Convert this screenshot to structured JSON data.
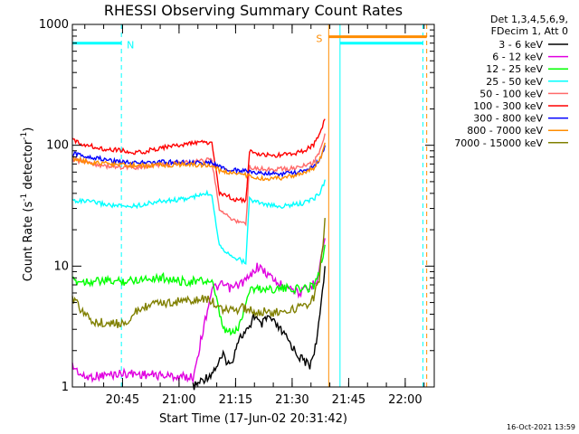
{
  "chart_data": {
    "type": "line",
    "title": "RHESSI Observing Summary Count Rates",
    "xlabel": "Start Time (17-Jun-02 20:31:42)",
    "ylabel_main": "Count Rate (s",
    "ylabel_sup1": "-1",
    "ylabel_mid": " detector",
    "ylabel_sup2": "-1",
    "ylabel_end": ")",
    "y_scale": "log",
    "ylim": [
      1,
      1000
    ],
    "xlim_minutes": [
      0,
      96
    ],
    "x_ticks": [
      {
        "label": "20:45",
        "min": 13.3
      },
      {
        "label": "21:00",
        "min": 28.3
      },
      {
        "label": "21:15",
        "min": 43.3
      },
      {
        "label": "21:30",
        "min": 58.3
      },
      {
        "label": "21:45",
        "min": 73.3
      },
      {
        "label": "22:00",
        "min": 88.3
      }
    ],
    "y_ticks": [
      {
        "label": "1",
        "value": 1
      },
      {
        "label": "10",
        "value": 10
      },
      {
        "label": "100",
        "value": 100
      },
      {
        "label": "1000",
        "value": 1000
      }
    ],
    "legend_header": [
      "Det 1,3,4,5,6,9,",
      "FDecim 1, Att 0"
    ],
    "legend_placement": "right",
    "series": [
      {
        "name": "3 - 6 keV",
        "color": "#000000",
        "points": [
          [
            32,
            1
          ],
          [
            37,
            1.3
          ],
          [
            40,
            1.8
          ],
          [
            42,
            1.5
          ],
          [
            44,
            2.5
          ],
          [
            47,
            3
          ],
          [
            48,
            4
          ],
          [
            50,
            3.2
          ],
          [
            52,
            3.8
          ],
          [
            55,
            3
          ],
          [
            57,
            2.5
          ],
          [
            60,
            1.8
          ],
          [
            63,
            1.5
          ],
          [
            65,
            2.5
          ],
          [
            66,
            5
          ],
          [
            67,
            10
          ]
        ]
      },
      {
        "name": "6 - 12 keV",
        "color": "#e000e0",
        "points": [
          [
            0,
            1.5
          ],
          [
            3,
            1.2
          ],
          [
            14,
            1.3
          ],
          [
            32,
            1.2
          ],
          [
            37,
            6.5
          ],
          [
            40,
            7
          ],
          [
            42,
            6.5
          ],
          [
            44,
            7
          ],
          [
            47,
            8
          ],
          [
            49,
            10
          ],
          [
            51,
            9
          ],
          [
            53,
            8
          ],
          [
            55,
            7
          ],
          [
            57,
            7
          ],
          [
            60,
            6
          ],
          [
            63,
            6.5
          ],
          [
            65,
            8
          ],
          [
            66,
            12
          ],
          [
            67,
            17
          ]
        ]
      },
      {
        "name": "12 - 25 keV",
        "color": "#00ff00",
        "points": [
          [
            0,
            7.5
          ],
          [
            5,
            7.5
          ],
          [
            10,
            7.5
          ],
          [
            14,
            7.5
          ],
          [
            20,
            8
          ],
          [
            25,
            8
          ],
          [
            28,
            7.5
          ],
          [
            33,
            7.5
          ],
          [
            37,
            7.5
          ],
          [
            40,
            3
          ],
          [
            42,
            2.8
          ],
          [
            44,
            3
          ],
          [
            47,
            6.5
          ],
          [
            50,
            6.5
          ],
          [
            53,
            6.5
          ],
          [
            56,
            6.5
          ],
          [
            59,
            6.5
          ],
          [
            62,
            6.5
          ],
          [
            64,
            7
          ],
          [
            65.5,
            9
          ],
          [
            66.5,
            12
          ],
          [
            67,
            15
          ]
        ]
      },
      {
        "name": "25 - 50 keV",
        "color": "#00ffff",
        "points": [
          [
            0,
            35
          ],
          [
            5,
            34
          ],
          [
            10,
            32
          ],
          [
            14,
            31
          ],
          [
            18,
            32
          ],
          [
            22,
            34
          ],
          [
            26,
            35
          ],
          [
            30,
            36
          ],
          [
            33,
            38
          ],
          [
            36,
            40
          ],
          [
            37,
            39
          ],
          [
            39,
            15
          ],
          [
            41,
            13
          ],
          [
            43,
            12
          ],
          [
            45,
            11
          ],
          [
            46,
            11
          ],
          [
            47,
            36
          ],
          [
            49,
            34
          ],
          [
            52,
            32
          ],
          [
            55,
            31
          ],
          [
            58,
            32
          ],
          [
            61,
            33
          ],
          [
            64,
            36
          ],
          [
            66,
            42
          ],
          [
            67,
            52
          ]
        ]
      },
      {
        "name": "50 - 100 keV",
        "color": "#ff6a6a",
        "points": [
          [
            0,
            76
          ],
          [
            4,
            72
          ],
          [
            8,
            68
          ],
          [
            14,
            65
          ],
          [
            18,
            66
          ],
          [
            22,
            68
          ],
          [
            26,
            70
          ],
          [
            30,
            72
          ],
          [
            33,
            74
          ],
          [
            36,
            76
          ],
          [
            37,
            74
          ],
          [
            39,
            30
          ],
          [
            41,
            26
          ],
          [
            43,
            24
          ],
          [
            45,
            23
          ],
          [
            46,
            22
          ],
          [
            47,
            66
          ],
          [
            50,
            64
          ],
          [
            53,
            63
          ],
          [
            56,
            64
          ],
          [
            59,
            65
          ],
          [
            62,
            68
          ],
          [
            64,
            72
          ],
          [
            66,
            95
          ],
          [
            67,
            125
          ]
        ]
      },
      {
        "name": "100 - 300 keV",
        "color": "#ff0000",
        "points": [
          [
            0,
            110
          ],
          [
            4,
            100
          ],
          [
            8,
            94
          ],
          [
            14,
            90
          ],
          [
            16,
            85
          ],
          [
            20,
            90
          ],
          [
            24,
            96
          ],
          [
            28,
            100
          ],
          [
            32,
            104
          ],
          [
            35,
            106
          ],
          [
            37,
            104
          ],
          [
            39,
            40
          ],
          [
            41,
            38
          ],
          [
            43,
            36
          ],
          [
            45,
            35
          ],
          [
            46,
            35
          ],
          [
            47,
            88
          ],
          [
            50,
            84
          ],
          [
            53,
            82
          ],
          [
            56,
            83
          ],
          [
            59,
            86
          ],
          [
            62,
            92
          ],
          [
            64,
            102
          ],
          [
            66,
            130
          ],
          [
            67,
            165
          ]
        ]
      },
      {
        "name": "300 - 800 keV",
        "color": "#0000ff",
        "points": [
          [
            0,
            85
          ],
          [
            5,
            80
          ],
          [
            10,
            75
          ],
          [
            14,
            73
          ],
          [
            18,
            72
          ],
          [
            22,
            72
          ],
          [
            26,
            73
          ],
          [
            30,
            72
          ],
          [
            34,
            71
          ],
          [
            37,
            72
          ],
          [
            39,
            66
          ],
          [
            41,
            63
          ],
          [
            43,
            62
          ],
          [
            45,
            62
          ],
          [
            47,
            60
          ],
          [
            50,
            59
          ],
          [
            53,
            58
          ],
          [
            56,
            58
          ],
          [
            59,
            59
          ],
          [
            62,
            62
          ],
          [
            64,
            66
          ],
          [
            66,
            80
          ],
          [
            67,
            100
          ]
        ]
      },
      {
        "name": "800 - 7000 keV",
        "color": "#ff8c00",
        "points": [
          [
            0,
            78
          ],
          [
            5,
            72
          ],
          [
            10,
            70
          ],
          [
            14,
            68
          ],
          [
            18,
            68
          ],
          [
            22,
            68
          ],
          [
            26,
            69
          ],
          [
            30,
            69
          ],
          [
            34,
            69
          ],
          [
            37,
            68
          ],
          [
            39,
            62
          ],
          [
            41,
            60
          ],
          [
            43,
            59
          ],
          [
            45,
            59
          ],
          [
            47,
            55
          ],
          [
            50,
            53
          ],
          [
            53,
            53
          ],
          [
            56,
            54
          ],
          [
            59,
            56
          ],
          [
            62,
            60
          ],
          [
            64,
            65
          ],
          [
            66,
            80
          ],
          [
            67,
            105
          ]
        ]
      },
      {
        "name": "7000 - 15000 keV",
        "color": "#808000",
        "points": [
          [
            0,
            5.5
          ],
          [
            3,
            4
          ],
          [
            6,
            3.5
          ],
          [
            10,
            3.3
          ],
          [
            14,
            3.4
          ],
          [
            18,
            4.5
          ],
          [
            22,
            4.8
          ],
          [
            26,
            5
          ],
          [
            30,
            5.2
          ],
          [
            33,
            5.3
          ],
          [
            36,
            5.3
          ],
          [
            37,
            5.2
          ],
          [
            39,
            4.5
          ],
          [
            42,
            4.3
          ],
          [
            45,
            4.5
          ],
          [
            47,
            4.3
          ],
          [
            50,
            4.2
          ],
          [
            53,
            4.1
          ],
          [
            56,
            4.2
          ],
          [
            59,
            4.4
          ],
          [
            62,
            4.8
          ],
          [
            64,
            5.5
          ],
          [
            65.5,
            8
          ],
          [
            66.5,
            15
          ],
          [
            67,
            25
          ]
        ]
      }
    ],
    "flags": [
      {
        "label": "N",
        "color": "#00ffff",
        "start": 0,
        "end": 13,
        "level": 700
      },
      {
        "label": "",
        "color": "#00ffff",
        "start": 71,
        "end": 93,
        "level": 700
      },
      {
        "label": "S",
        "color": "#ff8c00",
        "start": 68,
        "end": 94,
        "level": 790
      }
    ],
    "vlines": [
      {
        "min": 13,
        "color": "#00ffff",
        "style": "dashed"
      },
      {
        "min": 68,
        "color": "#ff8c00",
        "style": "solid"
      },
      {
        "min": 71,
        "color": "#00ffff",
        "style": "solid"
      },
      {
        "min": 93,
        "color": "#00ffff",
        "style": "dashed"
      },
      {
        "min": 94,
        "color": "#ff8c00",
        "style": "dashed"
      }
    ],
    "grid": false
  },
  "footer_timestamp": "16-Oct-2021 13:59"
}
